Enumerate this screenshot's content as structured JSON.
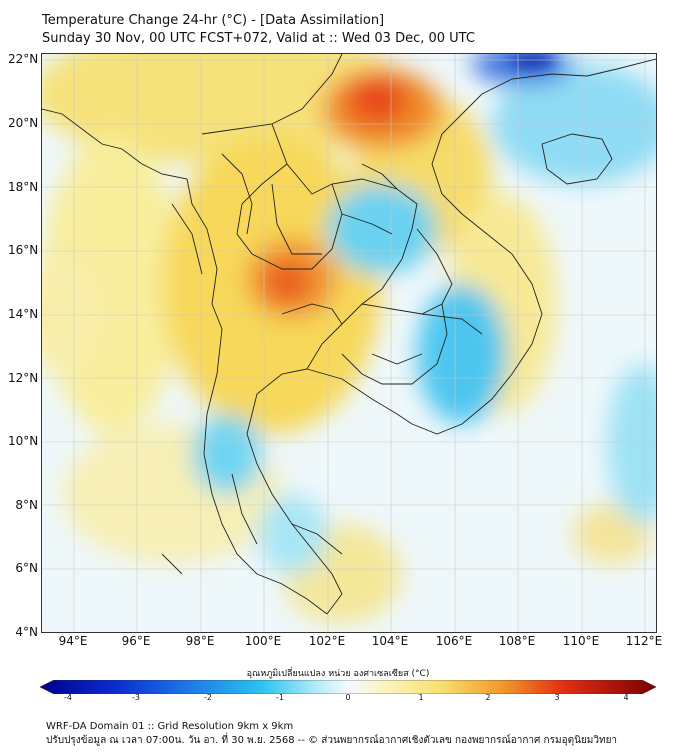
{
  "title": {
    "line1": "Temperature Change 24-hr (°C) - [Data Assimilation]",
    "line2": "Sunday 30 Nov, 00 UTC FCST+072, Valid at :: Wed 03 Dec, 00 UTC"
  },
  "map": {
    "lat_labels": [
      "22°N",
      "20°N",
      "18°N",
      "16°N",
      "14°N",
      "12°N",
      "10°N",
      "8°N",
      "6°N",
      "4°N"
    ],
    "lon_labels": [
      "94°E",
      "96°E",
      "98°E",
      "100°E",
      "102°E",
      "104°E",
      "106°E",
      "108°E",
      "110°E",
      "112°E"
    ],
    "lat_range": [
      4,
      22
    ],
    "lon_range": [
      93,
      112.3
    ]
  },
  "colorbar": {
    "title": "อุณหภูมิเปลี่ยนแปลง หน่วย องศาเซลเซียส (°C)",
    "range": [
      -4,
      4
    ],
    "ticks": [
      "-4",
      "-3",
      "-2",
      "-1",
      "0",
      "1",
      "2",
      "3",
      "4"
    ]
  },
  "footer": {
    "line1": "WRF-DA Domain 01 :: Grid Resolution 9km x 9km",
    "line2": "ปรับปรุงข้อมูล ณ เวลา 07:00น. วัน อา. ที่ 30 พ.ย. 2568 -- © ส่วนพยากรณ์อากาศเชิงตัวเลข กองพยากรณ์อากาศ กรมอุตุนิยมวิทยา"
  },
  "colors": {
    "background": "#ffffff",
    "cold_extreme": "#00008b",
    "cold": "#2bc4ef",
    "neutral": "#f4fbff",
    "warm": "#f8e070",
    "hot_extreme": "#7a0000",
    "coastline": "#222222"
  }
}
